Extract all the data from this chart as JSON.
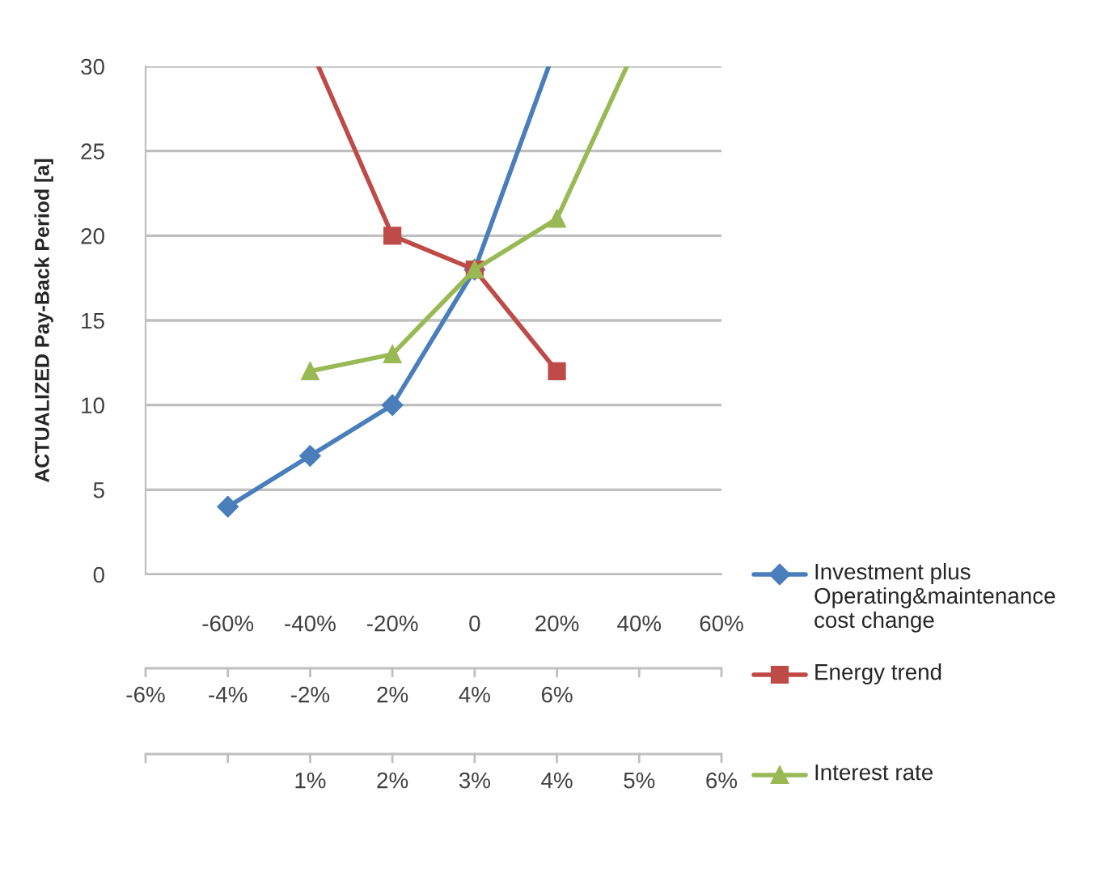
{
  "chart_data": {
    "type": "line",
    "ylabel": "ACTUALIZED Pay-Back Period [a]",
    "xlim": [
      -80,
      60
    ],
    "xticks": [
      {
        "value": -80,
        "label": null
      },
      {
        "value": -60,
        "label": "-60%"
      },
      {
        "value": -40,
        "label": "-40%"
      },
      {
        "value": -20,
        "label": "-20%"
      },
      {
        "value": 0,
        "label": "0"
      },
      {
        "value": 20,
        "label": "20%"
      },
      {
        "value": 40,
        "label": "40%"
      },
      {
        "value": 60,
        "label": "60%"
      }
    ],
    "annotations": [
      "-6%",
      "-4%",
      "-2%",
      "2%",
      "4%",
      "6%",
      "1%",
      "2%",
      "3%",
      "4%",
      "5%",
      "6%"
    ],
    "ylim": [
      0,
      30
    ],
    "yticks": [
      0,
      5,
      10,
      15,
      20,
      25,
      30
    ],
    "grid": "y",
    "legend": "right",
    "line_style": "solid",
    "series": [
      {
        "name": "Investment plus Operating&maintenance cost change",
        "color": "#4a7ebb",
        "marker": "diamond",
        "x": [
          -60,
          -40,
          -20,
          0,
          18
        ],
        "values": [
          4,
          7,
          10,
          18,
          30
        ]
      },
      {
        "name": "Energy trend",
        "color": "#be4b48",
        "marker": "square",
        "x": [
          -38,
          -20,
          0,
          20
        ],
        "values": [
          30,
          20,
          18,
          12
        ]
      },
      {
        "name": "Interest rate",
        "color": "#98b954",
        "marker": "triangle",
        "x": [
          -40,
          -20,
          0,
          20,
          37
        ],
        "values": [
          12,
          13,
          18,
          21,
          30
        ]
      }
    ]
  }
}
